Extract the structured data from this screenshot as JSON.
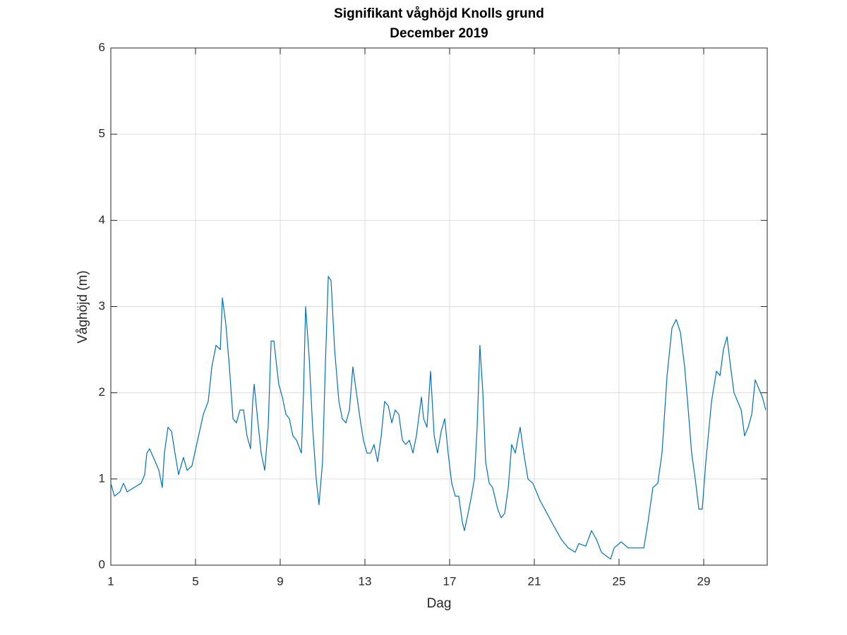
{
  "chart_data": {
    "type": "line",
    "title": "Signifikant våghöjd Knolls grund",
    "subtitle": "December 2019",
    "xlabel": "Dag",
    "ylabel": "Våghöjd (m)",
    "xlim": [
      1,
      32
    ],
    "ylim": [
      0,
      6
    ],
    "xticks": [
      1,
      5,
      9,
      13,
      17,
      21,
      25,
      29
    ],
    "yticks": [
      0,
      1,
      2,
      3,
      4,
      5,
      6
    ],
    "grid": true,
    "series": [
      {
        "color": "#0072bd",
        "x": [
          1.0,
          1.17,
          1.43,
          1.6,
          1.77,
          2.1,
          2.43,
          2.6,
          2.7,
          2.83,
          3.1,
          3.27,
          3.43,
          3.53,
          3.7,
          3.87,
          4.03,
          4.2,
          4.43,
          4.6,
          4.83,
          5.1,
          5.37,
          5.6,
          5.77,
          5.97,
          6.17,
          6.27,
          6.43,
          6.6,
          6.77,
          6.93,
          7.1,
          7.27,
          7.43,
          7.6,
          7.7,
          7.77,
          7.93,
          8.1,
          8.27,
          8.43,
          8.57,
          8.7,
          8.93,
          9.1,
          9.27,
          9.43,
          9.6,
          9.77,
          10.0,
          10.1,
          10.2,
          10.37,
          10.53,
          10.7,
          10.83,
          11.0,
          11.13,
          11.27,
          11.4,
          11.57,
          11.77,
          11.93,
          12.1,
          12.27,
          12.43,
          12.6,
          12.77,
          12.93,
          13.1,
          13.27,
          13.43,
          13.6,
          13.77,
          13.93,
          14.1,
          14.27,
          14.43,
          14.6,
          14.77,
          14.93,
          15.1,
          15.27,
          15.43,
          15.67,
          15.77,
          15.93,
          16.1,
          16.27,
          16.43,
          16.6,
          16.77,
          16.93,
          17.1,
          17.27,
          17.43,
          17.6,
          17.7,
          17.87,
          18.03,
          18.17,
          18.3,
          18.43,
          18.57,
          18.7,
          18.87,
          19.03,
          19.27,
          19.43,
          19.6,
          19.77,
          19.93,
          20.1,
          20.33,
          20.5,
          20.7,
          20.93,
          21.27,
          21.6,
          21.93,
          22.27,
          22.6,
          22.93,
          23.1,
          23.43,
          23.7,
          23.93,
          24.17,
          24.43,
          24.6,
          24.77,
          25.1,
          25.43,
          25.77,
          26.17,
          26.37,
          26.6,
          26.83,
          27.03,
          27.27,
          27.5,
          27.7,
          27.9,
          28.1,
          28.27,
          28.43,
          28.6,
          28.77,
          28.93,
          29.1,
          29.37,
          29.6,
          29.77,
          29.93,
          30.1,
          30.27,
          30.43,
          30.6,
          30.77,
          30.93,
          31.1,
          31.27,
          31.43,
          31.6,
          31.77,
          31.93
        ],
        "values": [
          0.95,
          0.8,
          0.85,
          0.95,
          0.85,
          0.9,
          0.95,
          1.05,
          1.3,
          1.35,
          1.2,
          1.1,
          0.9,
          1.3,
          1.6,
          1.55,
          1.3,
          1.05,
          1.25,
          1.1,
          1.15,
          1.45,
          1.75,
          1.9,
          2.3,
          2.55,
          2.5,
          3.1,
          2.8,
          2.3,
          1.7,
          1.65,
          1.8,
          1.8,
          1.5,
          1.35,
          1.9,
          2.1,
          1.7,
          1.3,
          1.1,
          1.6,
          2.6,
          2.6,
          2.1,
          1.95,
          1.75,
          1.7,
          1.5,
          1.45,
          1.3,
          2.0,
          3.0,
          2.4,
          1.6,
          1.0,
          0.7,
          1.2,
          2.3,
          3.35,
          3.3,
          2.5,
          1.9,
          1.7,
          1.65,
          1.8,
          2.3,
          2.0,
          1.7,
          1.45,
          1.3,
          1.3,
          1.4,
          1.2,
          1.5,
          1.9,
          1.85,
          1.65,
          1.8,
          1.75,
          1.45,
          1.4,
          1.45,
          1.3,
          1.5,
          1.95,
          1.7,
          1.6,
          2.25,
          1.5,
          1.3,
          1.55,
          1.7,
          1.3,
          0.95,
          0.8,
          0.8,
          0.5,
          0.4,
          0.6,
          0.8,
          1.0,
          1.6,
          2.55,
          2.0,
          1.2,
          0.95,
          0.9,
          0.65,
          0.55,
          0.6,
          0.9,
          1.4,
          1.3,
          1.6,
          1.3,
          1.0,
          0.95,
          0.75,
          0.6,
          0.45,
          0.3,
          0.2,
          0.15,
          0.25,
          0.22,
          0.4,
          0.3,
          0.15,
          0.1,
          0.07,
          0.2,
          0.27,
          0.2,
          0.2,
          0.2,
          0.5,
          0.9,
          0.95,
          1.3,
          2.2,
          2.75,
          2.85,
          2.7,
          2.3,
          1.8,
          1.3,
          1.0,
          0.65,
          0.65,
          1.2,
          1.9,
          2.25,
          2.2,
          2.5,
          2.65,
          2.3,
          2.0,
          1.9,
          1.8,
          1.5,
          1.6,
          1.75,
          2.15,
          2.05,
          1.95,
          1.8
        ]
      }
    ]
  }
}
